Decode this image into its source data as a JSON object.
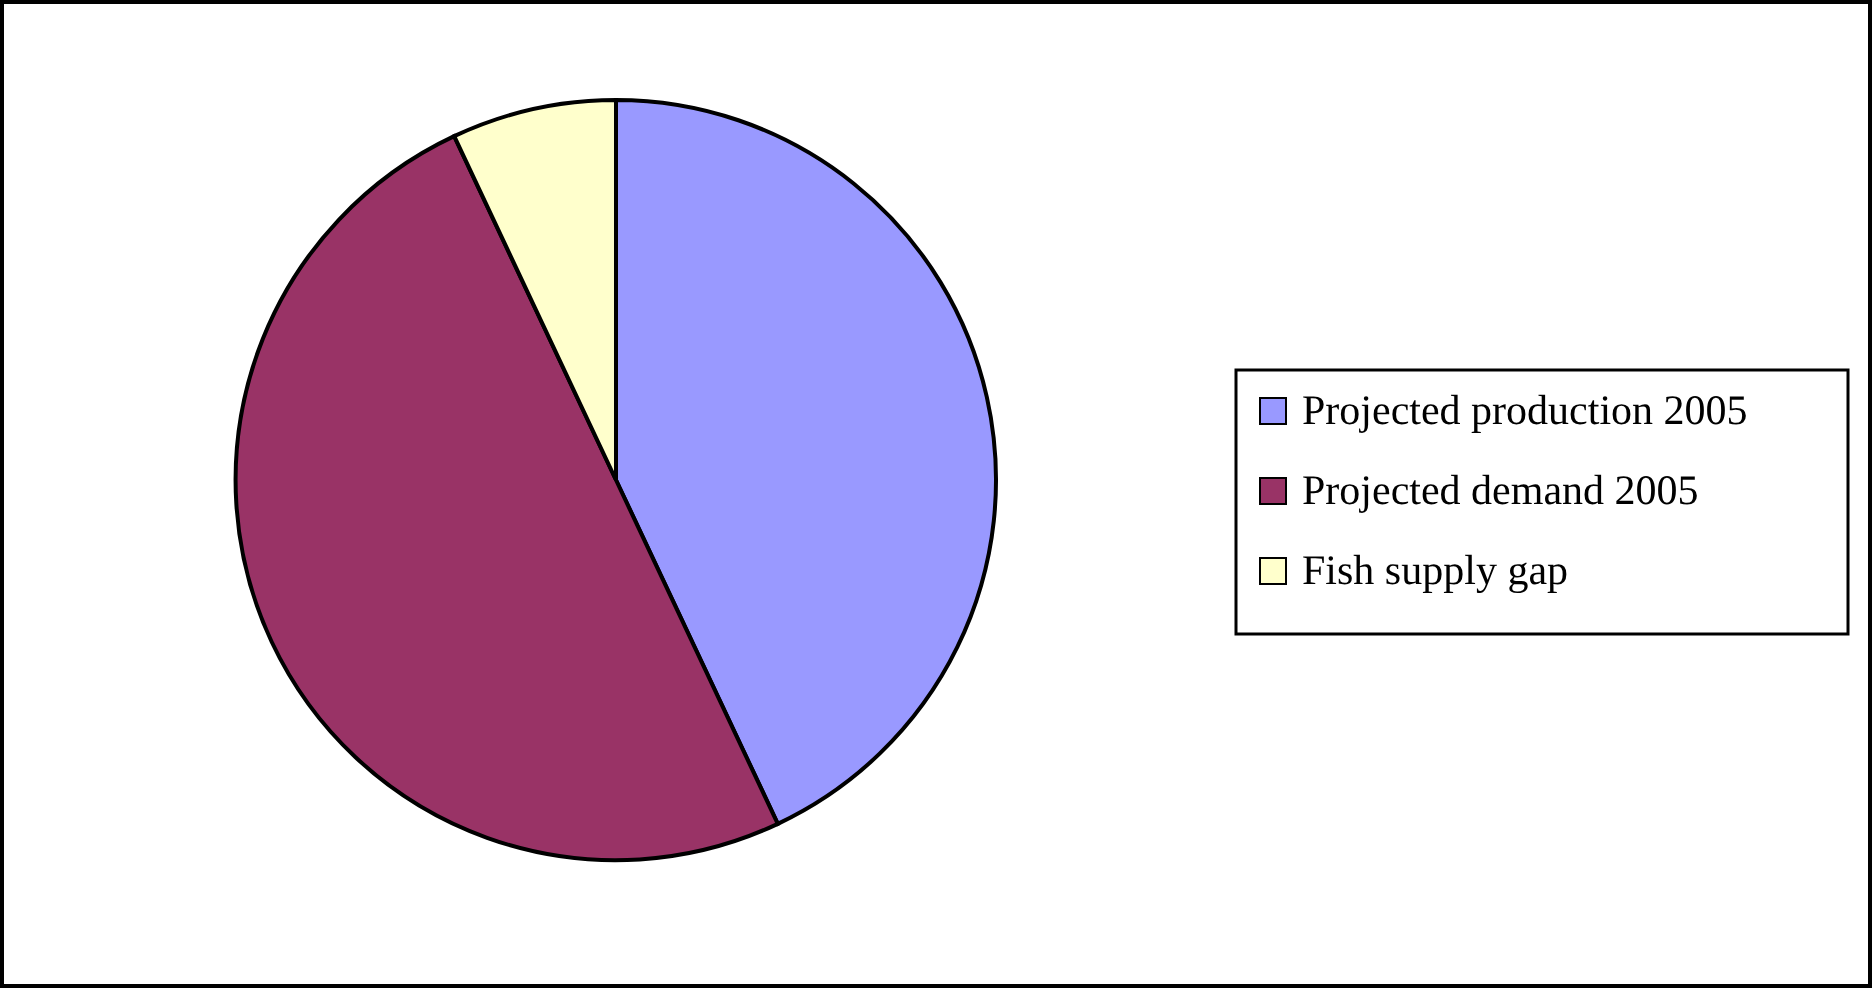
{
  "chart_data": {
    "type": "pie",
    "categories": [
      "Projected production 2005",
      "Projected demand 2005",
      "Fish supply gap"
    ],
    "values": [
      43,
      50,
      7
    ],
    "colors": [
      "#9999ff",
      "#993366",
      "#ffffcc"
    ],
    "legend": "right"
  }
}
